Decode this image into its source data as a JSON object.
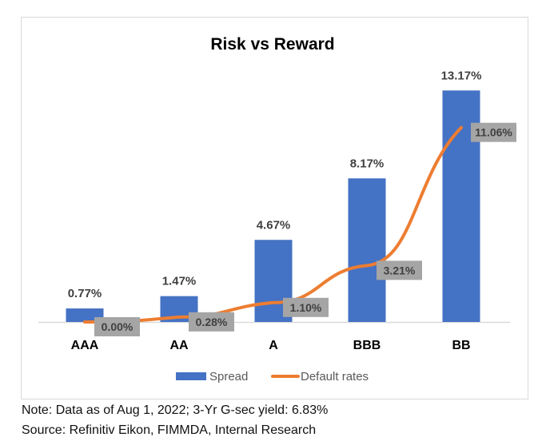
{
  "chart_data": {
    "type": "bar+line",
    "title": "Risk vs Reward",
    "categories": [
      "AAA",
      "AA",
      "A",
      "BBB",
      "BB"
    ],
    "series": [
      {
        "name": "Spread",
        "type": "bar",
        "values": [
          0.77,
          1.47,
          4.67,
          8.17,
          13.17
        ],
        "labels": [
          "0.77%",
          "1.47%",
          "4.67%",
          "8.17%",
          "13.17%"
        ],
        "color": "#4472c4"
      },
      {
        "name": "Default rates",
        "type": "line",
        "values": [
          0.0,
          0.28,
          1.1,
          3.21,
          11.06
        ],
        "labels": [
          "0.00%",
          "0.28%",
          "1.10%",
          "3.21%",
          "11.06%"
        ],
        "color": "#ed7d31"
      }
    ],
    "ylim": [
      0,
      13.17
    ],
    "grid": false,
    "legend": "bottom",
    "label_box_color": "#a5a5a5"
  },
  "notes": {
    "note": "Note: Data as of Aug 1, 2022; 3-Yr G-sec yield: 6.83%",
    "source": "Source: Refinitiv Eikon, FIMMDA, Internal Research"
  }
}
